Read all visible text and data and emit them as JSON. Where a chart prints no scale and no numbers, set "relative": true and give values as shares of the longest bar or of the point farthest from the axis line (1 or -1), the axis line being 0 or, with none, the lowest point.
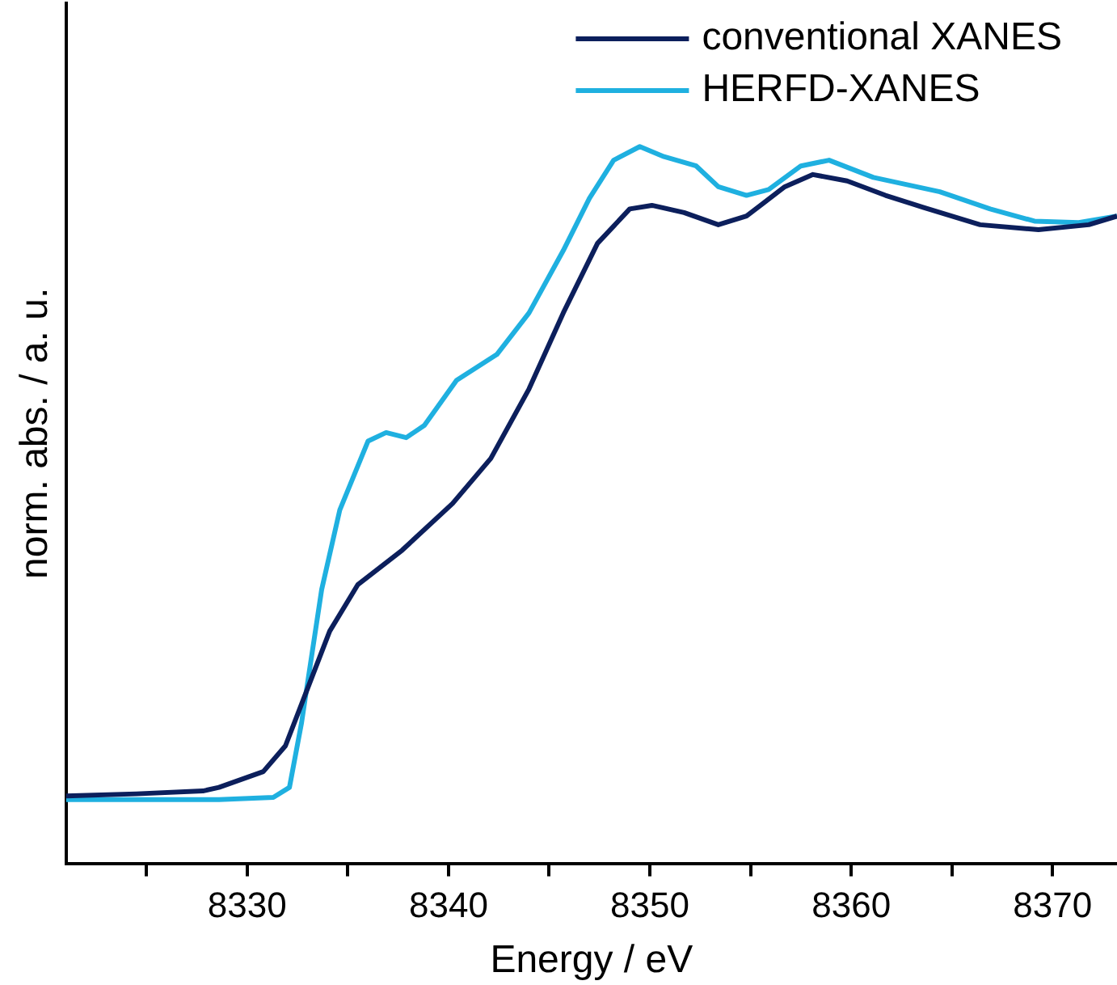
{
  "chart_data": {
    "type": "line",
    "xlabel": "Energy / eV",
    "ylabel": "norm. abs. / a. u.",
    "relative": true,
    "legend": "top right",
    "grid": false,
    "marker": "none",
    "line_style": "solid",
    "xlim": [
      8321,
      8373.2
    ],
    "xticks": [
      {
        "value": 8325,
        "label": null
      },
      8330,
      {
        "value": 8335,
        "label": null
      },
      8340,
      {
        "value": 8345,
        "label": null
      },
      8350,
      {
        "value": 8355,
        "label": null
      },
      8360,
      {
        "value": 8365,
        "label": null
      },
      8370
    ],
    "series": [
      {
        "name": "conventional XANES",
        "color": "#0c1f5c",
        "x": [
          8321,
          8324.5,
          8327.8,
          8328.6,
          8330.8,
          8331.9,
          8333,
          8334.1,
          8335.5,
          8337.7,
          8340.2,
          8342.1,
          8344,
          8345.7,
          8347.4,
          8349,
          8350.1,
          8351.7,
          8353.4,
          8354.8,
          8356.7,
          8358.1,
          8359.8,
          8361.7,
          8363.6,
          8366.4,
          8369.3,
          8371.8,
          8373.2
        ],
        "values": [
          0.094,
          0.097,
          0.101,
          0.106,
          0.128,
          0.164,
          0.244,
          0.324,
          0.389,
          0.437,
          0.502,
          0.565,
          0.662,
          0.768,
          0.865,
          0.913,
          0.918,
          0.908,
          0.891,
          0.903,
          0.944,
          0.961,
          0.952,
          0.932,
          0.915,
          0.891,
          0.884,
          0.891,
          0.903
        ]
      },
      {
        "name": "HERFD-XANES",
        "color": "#1fb0e0",
        "x": [
          8321,
          8324.5,
          8328.6,
          8331.3,
          8332.1,
          8332.7,
          8333.7,
          8334.6,
          8336,
          8336.9,
          8337.9,
          8338.8,
          8340.4,
          8342.4,
          8344,
          8345.7,
          8347,
          8348.2,
          8349.5,
          8350.7,
          8352.3,
          8353.4,
          8354.8,
          8355.9,
          8357.5,
          8358.9,
          8361.1,
          8364.4,
          8366.9,
          8369.1,
          8371.3,
          8373.2
        ],
        "values": [
          0.089,
          0.089,
          0.089,
          0.092,
          0.106,
          0.196,
          0.382,
          0.493,
          0.589,
          0.601,
          0.594,
          0.611,
          0.674,
          0.71,
          0.768,
          0.855,
          0.928,
          0.981,
          1,
          0.986,
          0.973,
          0.944,
          0.932,
          0.94,
          0.973,
          0.981,
          0.957,
          0.937,
          0.913,
          0.896,
          0.894,
          0.903
        ]
      }
    ]
  }
}
